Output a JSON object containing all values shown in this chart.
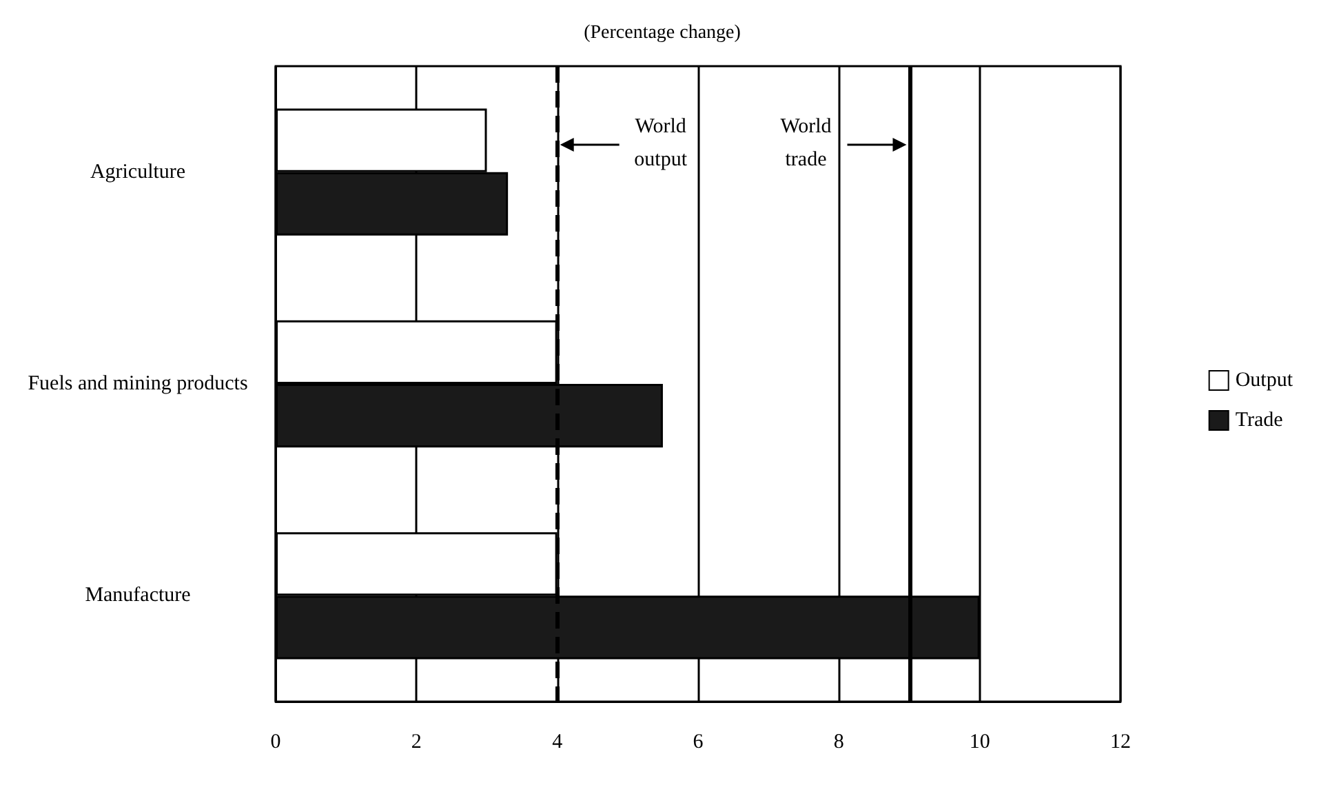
{
  "chart_data": {
    "type": "bar",
    "orientation": "horizontal",
    "title": "(Percentage change)",
    "categories": [
      "Agriculture",
      "Fuels and mining products",
      "Manufacture"
    ],
    "series": [
      {
        "name": "Output",
        "color": "#ffffff",
        "values": [
          3.0,
          4.0,
          4.0
        ]
      },
      {
        "name": "Trade",
        "color": "#1a1a1a",
        "values": [
          3.3,
          5.5,
          10.0
        ]
      }
    ],
    "xlim": [
      0,
      12
    ],
    "xticks": [
      0,
      2,
      4,
      6,
      8,
      10,
      12
    ],
    "grid": "x",
    "legend": "right",
    "ref_lines": [
      {
        "axis": "x",
        "value": 4,
        "label": "World output",
        "line_style": "dashed"
      },
      {
        "axis": "x",
        "value": 9,
        "label": "World trade",
        "line_style": "solid"
      }
    ]
  }
}
